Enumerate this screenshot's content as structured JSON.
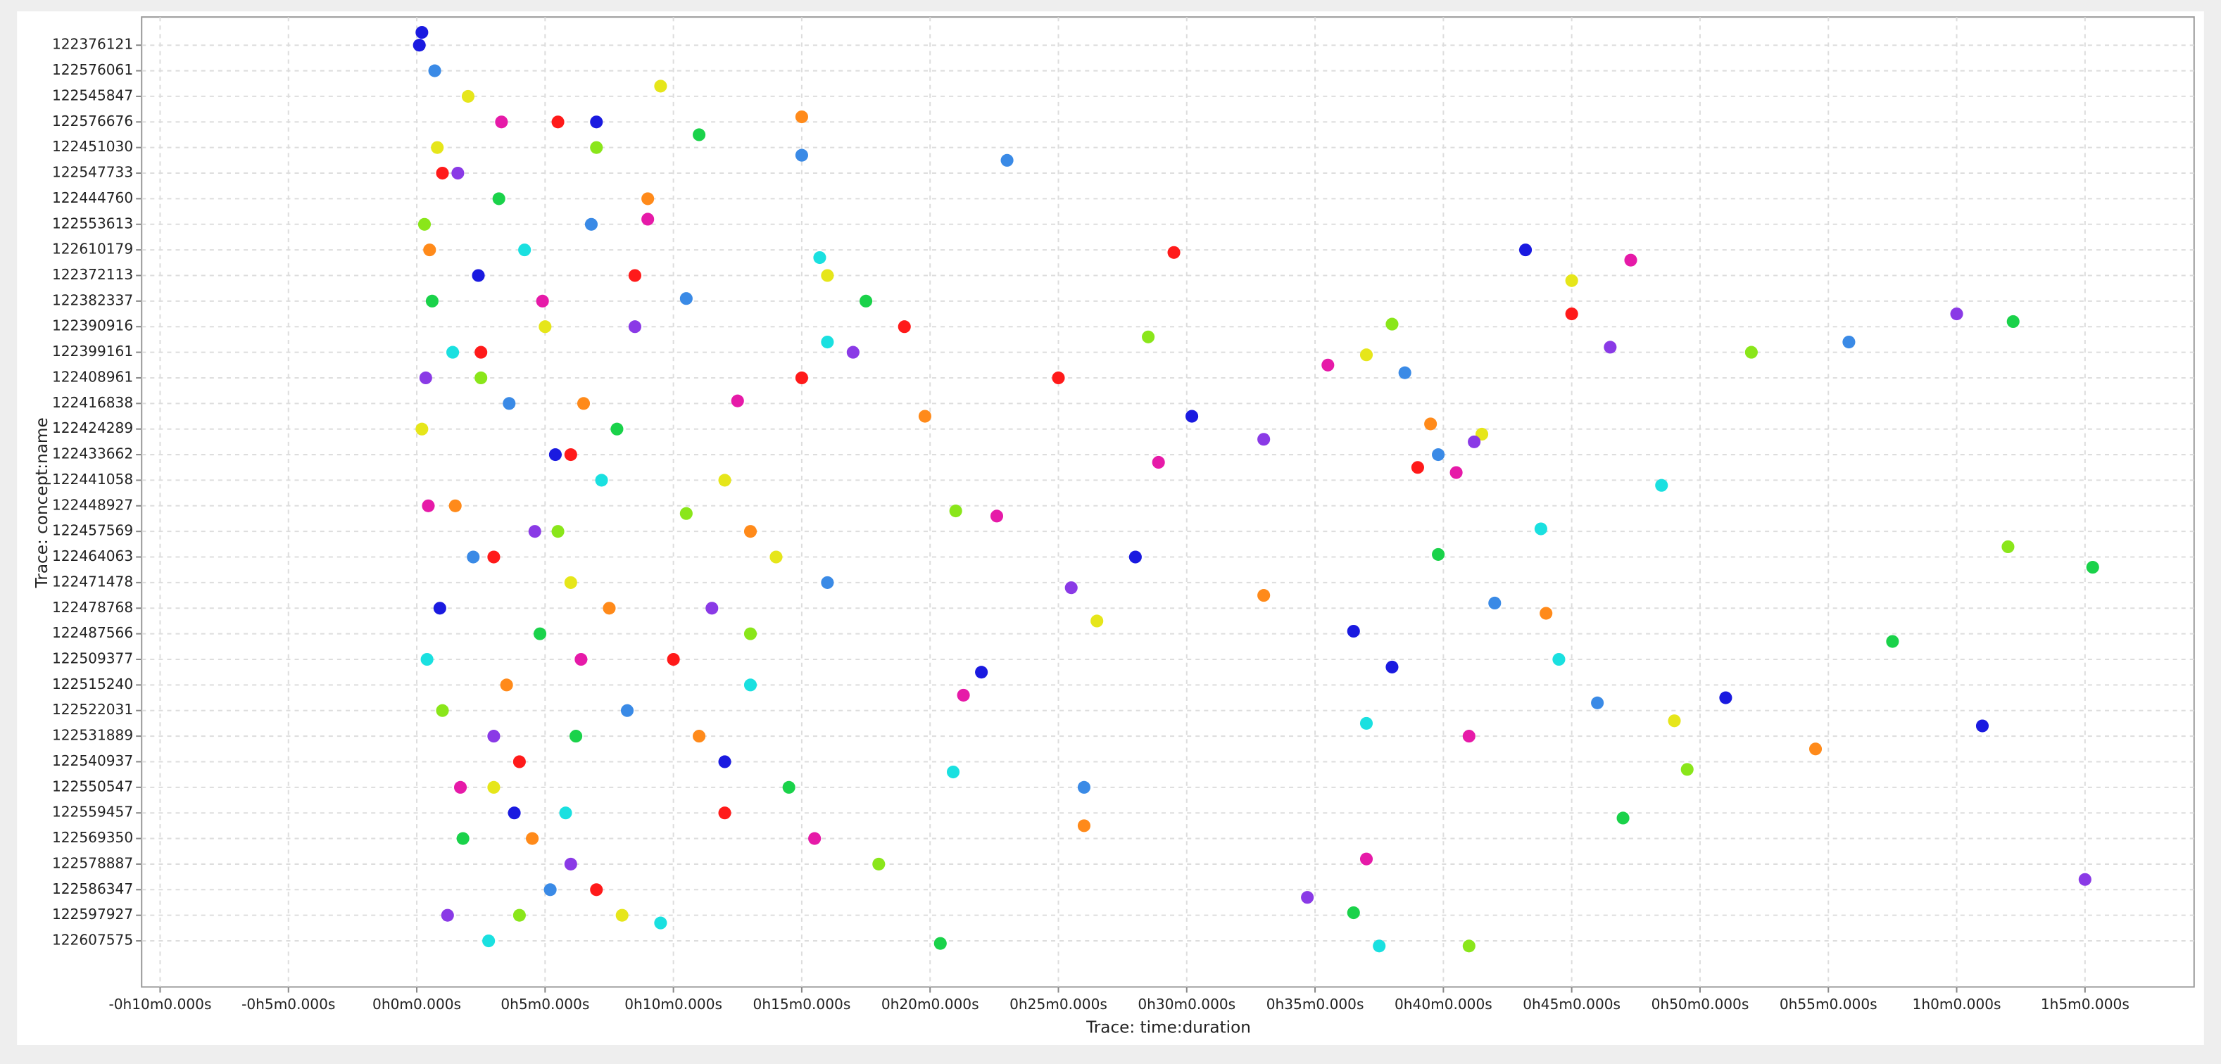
{
  "chart_data": {
    "type": "scatter",
    "x_label": "Trace: time:duration",
    "y_label": "Trace: concept:name",
    "grid": true,
    "xlim": [
      -10.72,
      69.25
    ],
    "xticks": [
      {
        "value": -10,
        "label": "-0h10m0.000s"
      },
      {
        "value": -5,
        "label": "-0h5m0.000s"
      },
      {
        "value": 0,
        "label": "0h0m0.000s"
      },
      {
        "value": 5,
        "label": "0h5m0.000s"
      },
      {
        "value": 10,
        "label": "0h10m0.000s"
      },
      {
        "value": 15,
        "label": "0h15m0.000s"
      },
      {
        "value": 20,
        "label": "0h20m0.000s"
      },
      {
        "value": 25,
        "label": "0h25m0.000s"
      },
      {
        "value": 30,
        "label": "0h30m0.000s"
      },
      {
        "value": 35,
        "label": "0h35m0.000s"
      },
      {
        "value": 40,
        "label": "0h40m0.000s"
      },
      {
        "value": 45,
        "label": "0h45m0.000s"
      },
      {
        "value": 50,
        "label": "0h50m0.000s"
      },
      {
        "value": 55,
        "label": "0h55m0.000s"
      },
      {
        "value": 60,
        "label": "1h0m0.000s"
      },
      {
        "value": 65,
        "label": "1h5m0.000s"
      }
    ],
    "ylim": [
      36.8,
      -1.1
    ],
    "yticks": [
      {
        "value": 0,
        "label": "122376121"
      },
      {
        "value": 1,
        "label": "122576061"
      },
      {
        "value": 2,
        "label": "122545847"
      },
      {
        "value": 3,
        "label": "122576676"
      },
      {
        "value": 4,
        "label": "122451030"
      },
      {
        "value": 5,
        "label": "122547733"
      },
      {
        "value": 6,
        "label": "122444760"
      },
      {
        "value": 7,
        "label": "122553613"
      },
      {
        "value": 8,
        "label": "122610179"
      },
      {
        "value": 9,
        "label": "122372113"
      },
      {
        "value": 10,
        "label": "122382337"
      },
      {
        "value": 11,
        "label": "122390916"
      },
      {
        "value": 12,
        "label": "122399161"
      },
      {
        "value": 13,
        "label": "122408961"
      },
      {
        "value": 14,
        "label": "122416838"
      },
      {
        "value": 15,
        "label": "122424289"
      },
      {
        "value": 16,
        "label": "122433662"
      },
      {
        "value": 17,
        "label": "122441058"
      },
      {
        "value": 18,
        "label": "122448927"
      },
      {
        "value": 19,
        "label": "122457569"
      },
      {
        "value": 20,
        "label": "122464063"
      },
      {
        "value": 21,
        "label": "122471478"
      },
      {
        "value": 22,
        "label": "122478768"
      },
      {
        "value": 23,
        "label": "122487566"
      },
      {
        "value": 24,
        "label": "122509377"
      },
      {
        "value": 25,
        "label": "122515240"
      },
      {
        "value": 26,
        "label": "122522031"
      },
      {
        "value": 27,
        "label": "122531889"
      },
      {
        "value": 28,
        "label": "122540937"
      },
      {
        "value": 29,
        "label": "122550547"
      },
      {
        "value": 30,
        "label": "122559457"
      },
      {
        "value": 31,
        "label": "122569350"
      },
      {
        "value": 32,
        "label": "122578887"
      },
      {
        "value": 33,
        "label": "122586347"
      },
      {
        "value": 34,
        "label": "122597927"
      },
      {
        "value": 35,
        "label": "122607575"
      }
    ],
    "series": [
      {
        "color": "#ff1a1a",
        "x": [
          1,
          2.5,
          3,
          4,
          5.5,
          6,
          7,
          8.5,
          10,
          12,
          15,
          19,
          25,
          29.5,
          39,
          45
        ],
        "y": [
          5,
          12,
          20,
          28,
          3,
          16,
          33,
          9,
          24,
          30,
          13,
          11,
          13,
          8.1,
          16.5,
          10.5
        ]
      },
      {
        "color": "#ff8a1a",
        "x": [
          0.5,
          1.5,
          3.5,
          4.5,
          6.5,
          7.5,
          9,
          11,
          13,
          15,
          19.8,
          26,
          33,
          39.5,
          44,
          54.5
        ],
        "y": [
          8,
          18,
          25,
          31,
          14,
          22,
          6,
          27,
          19,
          2.8,
          14.5,
          30.5,
          21.5,
          14.8,
          22.2,
          27.5
        ]
      },
      {
        "color": "#e6e61a",
        "x": [
          0.2,
          2,
          3,
          5,
          6,
          8,
          9.5,
          12,
          14,
          16,
          26.5,
          37,
          41.5,
          45,
          49,
          0.8
        ],
        "y": [
          15,
          2,
          29,
          11,
          21,
          34,
          1.6,
          17,
          20,
          9,
          22.5,
          12.1,
          15.2,
          9.2,
          26.4,
          4
        ]
      },
      {
        "color": "#8ae61a",
        "x": [
          0.3,
          1,
          2.5,
          4,
          5.5,
          7,
          10.5,
          13,
          18,
          21,
          28.5,
          38,
          41,
          49.5,
          62,
          52
        ],
        "y": [
          7,
          26,
          13,
          34,
          19,
          4,
          18.3,
          23,
          32,
          18.2,
          11.4,
          10.9,
          35.2,
          28.3,
          19.6,
          12
        ]
      },
      {
        "color": "#1ad24a",
        "x": [
          0.6,
          1.8,
          3.2,
          4.8,
          6.2,
          7.8,
          11,
          14.5,
          17.5,
          20.4,
          36.5,
          39.8,
          47,
          57.5,
          65.3,
          62.2
        ],
        "y": [
          10,
          31,
          6,
          23,
          27,
          15,
          3.5,
          29,
          10,
          35.1,
          33.9,
          19.9,
          30.2,
          23.3,
          20.4,
          10.8
        ]
      },
      {
        "color": "#1ae0e0",
        "x": [
          0.4,
          1.4,
          2.8,
          4.2,
          5.8,
          7.2,
          9.5,
          13,
          16,
          20.9,
          37.5,
          44.5,
          48.5,
          37,
          43.8,
          15.7
        ],
        "y": [
          24,
          12,
          35,
          8,
          30,
          17,
          34.3,
          25,
          11.6,
          28.4,
          35.2,
          24,
          17.2,
          26.5,
          18.9,
          8.3
        ]
      },
      {
        "color": "#3a8ae6",
        "x": [
          0.7,
          2.2,
          3.6,
          5.2,
          6.8,
          8.2,
          10.5,
          15,
          23,
          26,
          38.5,
          39.8,
          46,
          55.8,
          42,
          16
        ],
        "y": [
          1,
          20,
          14,
          33,
          7,
          26,
          9.9,
          4.3,
          4.5,
          29,
          12.8,
          16,
          25.7,
          11.6,
          21.8,
          21
        ]
      },
      {
        "color": "#1a1ae0",
        "x": [
          0.1,
          0.9,
          2.4,
          3.8,
          5.4,
          7,
          12,
          22,
          28,
          30.2,
          38,
          43.2,
          51,
          61,
          36.5,
          0.2
        ],
        "y": [
          0,
          22,
          9,
          30,
          16,
          3,
          28,
          24.5,
          20,
          14.5,
          24.3,
          8,
          25.5,
          26.6,
          22.9,
          -0.5
        ]
      },
      {
        "color": "#8a3ae6",
        "x": [
          0.35,
          1.6,
          3,
          4.6,
          6,
          8.5,
          11.5,
          17,
          25.5,
          33,
          41.2,
          46.5,
          34.7,
          65,
          60,
          1.2
        ],
        "y": [
          13,
          5,
          27,
          19,
          32,
          11,
          22,
          12,
          21.2,
          15.4,
          15.5,
          11.8,
          33.3,
          32.6,
          10.5,
          34
        ]
      },
      {
        "color": "#e61aa8",
        "x": [
          0.45,
          1.7,
          3.3,
          4.9,
          6.4,
          9,
          12.5,
          15.5,
          21.3,
          28.9,
          35.5,
          40.5,
          47.3,
          41,
          37,
          22.6
        ],
        "y": [
          18,
          29,
          3,
          10,
          24,
          6.8,
          13.9,
          31,
          25.4,
          16.3,
          12.5,
          16.7,
          8.4,
          27,
          31.8,
          18.4
        ]
      }
    ]
  }
}
